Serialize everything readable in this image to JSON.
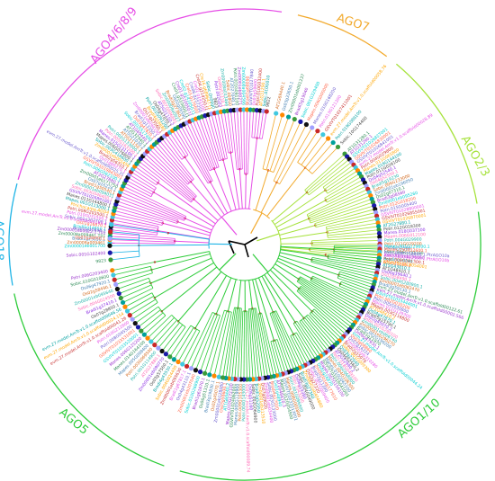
{
  "title": "",
  "colors": {
    "AGO4/6/8/9": "#e64ee6",
    "AGO7": "#f2a92b",
    "AGO2/3": "#a6e23b",
    "AGO18": "#1fb4e6",
    "AGO5": "#2ecc3a",
    "AGO1/10": "#2ecc3a",
    "root": "#000000",
    "branch_red": "#d02020"
  },
  "clades": [
    {
      "id": "ago4",
      "label": "AGO4/6/8/9",
      "color_key": "AGO4/6/8/9",
      "leaf_count": 72
    },
    {
      "id": "ago7",
      "label": "AGO7",
      "color_key": "AGO7",
      "leaf_count": 12
    },
    {
      "id": "ago23",
      "label": "AGO2/3",
      "color_key": "AGO2/3",
      "leaf_count": 34
    },
    {
      "id": "ago18",
      "label": "AGO18",
      "color_key": "AGO18",
      "leaf_count": 6
    },
    {
      "id": "ago5",
      "label": "AGO5",
      "color_key": "AGO5",
      "leaf_count": 34
    },
    {
      "id": "ago110",
      "label": "AGO1/10",
      "color_key": "AGO1/10",
      "leaf_count": 78
    }
  ],
  "leaves": {
    "ago4": [
      "Zm00008a009461",
      "Bradi1g23050.1",
      "Zm00008a009461.T01",
      "Zm00001eb0022.1.T01",
      "Bradi5g14650.1",
      "Os01g16870.1",
      "Sobic.001g207700.1",
      "Potri.010G031500.2",
      "Potri.008G203500.1",
      "Ptrichocarpa.AGO4",
      "Mapes.001G113000.1",
      "Manes.011G144800.1",
      "GSVIVT01026891001",
      "Sobic.003G046400.1",
      "Zm00001eb094031",
      "Bradi1g50540.1",
      "Os07g16224.1",
      "Zm00001eb171750",
      "AT2G27880.1",
      "Potri.006G062100.1",
      "GSVIVT01019843001",
      "evm.27.model.AmTr.v1.0.scaffold00025.31",
      "Os01g68270.1",
      "Bradi2g56310.1",
      "Zm00001eb001456",
      "Sobic.003G416600.1",
      "Mapes.006G076800.1",
      "Manes.015G131100.1",
      "Potri.005G163100.1",
      "Potri.002G133000.1",
      "AT5G21150.1",
      "AT5G21030.2",
      "AT2G32940.1",
      "AT1G69440.1",
      "Sobic.001G517400",
      "Os03g47820.1",
      "Bradi1g13350.1",
      "Zm00001eb094190",
      "Os11g23560.1",
      "Bradi4g16880",
      "Potri.001G091200",
      "Os04g47870.1",
      "AT5G21150.2",
      "Sobic.007G006601",
      "Zm00008a0027",
      "Bradi3g27360.1",
      "Os02g06590",
      "Cre01.g510000.t1",
      "Cre01.g510050.t1",
      "Cre02.g141050.t1",
      "Cre03.g176600",
      "Cre06.g257250",
      "Cre02.g141100",
      "Cre04.g214250.t1",
      "Cre16.g689647.t1",
      "Sobic.Os06g0",
      "9823",
      "Potri.002G02",
      "Os06g51310.1",
      "Zm00008a013466",
      "Sobic.008G0",
      "AT2G27040.1",
      "Potri.001G091100",
      "Zm00001eb00271",
      "Zm00008a004566",
      "Bradi1g68090",
      "GSVIVT01027840",
      "Os03g58600",
      "Potri.010G032400",
      "AT1G31290.1",
      "Sobic.010G010",
      "9822"
    ],
    "ago7": [
      "AT1G69440.1",
      "Os03g33650.1",
      "Zm00001eb001237",
      "Bradi5g19040",
      "Sobic.001G329400",
      "Mapes.006G000000",
      "Manes.010G168200",
      "Potri.013G121200",
      "GSVIVT01027411001",
      "evm.27.model.AmTr.v1.0.scaffold00058.76",
      "Potri.019G089100",
      "Sobic.10G174400"
    ],
    "ago23": [
      "AT1G31280.1",
      "AT1G31290.1",
      "GSVIVT01026827001",
      "GSVIVT01026830001",
      "GSVIVT01026841001",
      "evm.27.model.AmTr.v1.0.scaffold00028.89",
      "Potri.004G029800",
      "Manes.011G065800",
      "Mapes.016G144100",
      "Potri.011G029100",
      "Os04g52540.1",
      "Os04g52550.1",
      "Bradi5g19230",
      "Sobic.006G233000",
      "Zm00001eb196050",
      "Os02g07310.1",
      "Bradi3g08560",
      "Zm00001eb095260",
      "Potri.012G018200",
      "Potri.015G005400",
      "GSVIVT01028800001",
      "GSVIVT01026855001",
      "GSVIVT01026870001",
      "AT2G27880.1",
      "Potri.012G018300",
      "Manes.018G037100",
      "Mapes.006G012100",
      "Potri.004G029900",
      "Potri.011G029200",
      "Os04g52560",
      "Sobic.006G233100",
      "Zm00001eb196060",
      "Bradi5g19240",
      "AT1G31280.2"
    ],
    "ago18": [
      "9823",
      "Sobic.001G102400",
      "Zm00001eb001700",
      "Os07g28850.1",
      "Bradi1g10690.1",
      "evm.27.model.AmTr.v1.0.scaffold00169.4"
    ],
    "ago5": [
      "Os02g45070.1",
      "Bradi3g19830.1",
      "Os06g51310.1",
      "Bradi1g61670.1",
      "Sobic.010G268900",
      "Zm00001eb207040",
      "Os04g43110.1",
      "Bradi1g67817.1",
      "Zm00001eb095630",
      "Sobic.004G024400",
      "Bradi4g43530.1",
      "Os03g57560.1",
      "Zm00001eb090770",
      "AT2G27880.1",
      "Potri.001G114900",
      "Potri.003G069500",
      "Mapes.005G098400",
      "Manes.014G164100",
      "Manes.006G125200",
      "GSVIVT01033520001",
      "GSVIVT01033531001",
      "Potri.008G045500",
      "Potri.010G212800",
      "evm.27.model.AmTr.v1.0.scaffold00041.26",
      "evm.27.model.AmTr.v1.0.scaffold00024.154",
      "evm.27.model.AmTr.v1.0.scaffold00046.56",
      "Os07g28850.1",
      "Bradi1g37410.1",
      "Sobic.004G024500",
      "Zm00001eb095640",
      "Os02g58490.1",
      "Os06g47920.1",
      "Sobic.010G010600",
      "Potri.006G203400"
    ],
    "ago110": [
      "Manes.001G129600.1",
      "Manes.15G032600.1",
      "Potri.008G158800.1.PtrAGO10a",
      "Potri.010G081300.1.PtrAGO10b",
      "Potri.009G081300.1",
      "GSVIVT01018054001",
      "AT5G43810.1",
      "AT1G48410.1",
      "Os06g39640.1",
      "Os02g58490.1",
      "Sobic.004G280900.1",
      "Zm00001eb082470",
      "Bradi3g59130.1",
      "evm.27.model.AmTr.v1.0.scaffold00122.61",
      "evm.27.model.AmTr.v1.0.scaffold00002.566",
      "GSVIVT01015444001",
      "Potri.002G030200",
      "Potri.005G030800",
      "Manes.011G139300",
      "Mapes.003G116800",
      "AT1G48410.2",
      "Os04g47870.1",
      "Bradi5g15790.1",
      "Os02g45070.2",
      "Sobic.001G290100",
      "Zm00001eb066740",
      "Zm00001eb296270",
      "Sobic.002G199200",
      "Bradi1g21970",
      "Os06g47930.1",
      "evm.27.model.AmTr.v1.0.scaffold00044.24",
      "Os03g08860",
      "Os07g16224",
      "Zm00001eb310280",
      "Bradi2g15070",
      "Sobic.001G099300",
      "Os03g22040",
      "Os04g52560.2",
      "AT2G32940.2",
      "Potri.018G049100",
      "Potri.006G068800",
      "Manes.004G106300",
      "Manes.010G065100",
      "GSVIVT01018041001",
      "Mapes.007G156100",
      "Os01g16870",
      "Zm00001eb177610",
      "Bradi2g11390",
      "Sobic.007G009400",
      "Os02g27220",
      "Zm00001eb404880",
      "Bradi3g27360",
      "Sobic.004G049000",
      "Os06g19380",
      "Potri.T043200",
      "Potri.001G086900",
      "Manes.008G005800",
      "GSVIVT01033513001",
      "Mapes.012G054900",
      "AT1G48410.3",
      "Os01g48940",
      "Bradi4g17020",
      "Sobic.003G133000",
      "Zm00001eb034400",
      "Os07g09020",
      "Zm00001eb213510",
      "Bradi1g52950",
      "Sobic.002G064900",
      "Os05g51160",
      "evm.27.model.AmTr.v1.0.scaffold00089.74",
      "Potri.004G143000",
      "Potri.009G105300",
      "Manes.005G119900",
      "GSVIVT01024862001",
      "Mapes.010G172100",
      "AT1G69440.2",
      "Os03g58600.1",
      "Zm00001eb128080"
    ]
  },
  "leaf_colors": [
    "#e64ee6",
    "#c83232",
    "#ffa500",
    "#00a0a0",
    "#444444",
    "#8a2be2",
    "#ff69b4",
    "#20b2aa",
    "#d2691e",
    "#4682b4",
    "#2e8b57",
    "#9932cc",
    "#00ced1",
    "#ff6347",
    "#6a5acd"
  ],
  "dot_colors": [
    "#1a1aa8",
    "#c82828",
    "#00a09a",
    "#111111",
    "#40c8e0",
    "#3a9a3a",
    "#a0a0ff",
    "#ff8800"
  ]
}
